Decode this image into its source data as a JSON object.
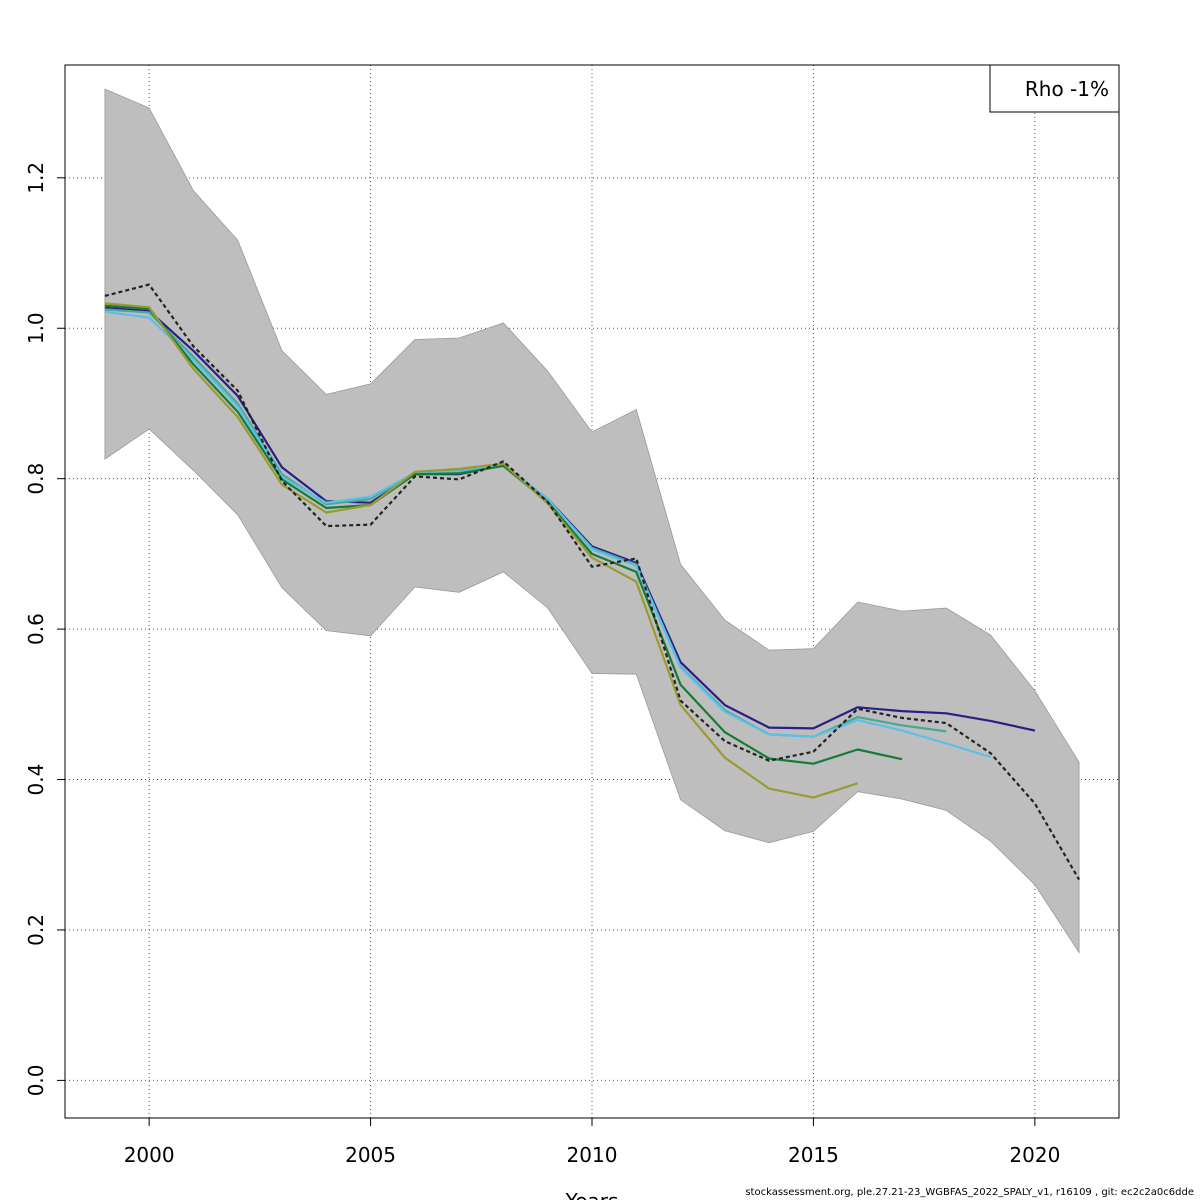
{
  "chart_data": {
    "type": "line",
    "title": "",
    "xlabel": "Years",
    "ylabel": "",
    "xlim": [
      1998.1,
      2021.9
    ],
    "ylim": [
      -0.05,
      1.35
    ],
    "xticks": [
      "2000",
      "2005",
      "2010",
      "2015",
      "2020"
    ],
    "yticks": [
      "0.0",
      "0.2",
      "0.4",
      "0.6",
      "0.8",
      "1.0",
      "1.2"
    ],
    "grid": true,
    "legend": {
      "position": "top-right",
      "text": "Rho -1%"
    },
    "band": {
      "x": [
        1999,
        2000,
        2001,
        2002,
        2003,
        2004,
        2005,
        2006,
        2007,
        2008,
        2009,
        2010,
        2011,
        2012,
        2013,
        2014,
        2015,
        2016,
        2017,
        2018,
        2019,
        2020,
        2021
      ],
      "upper": [
        1.318,
        1.293,
        1.183,
        1.117,
        0.97,
        0.912,
        0.926,
        0.985,
        0.987,
        1.007,
        0.943,
        0.862,
        0.892,
        0.686,
        0.612,
        0.572,
        0.574,
        0.636,
        0.624,
        0.628,
        0.592,
        0.518,
        0.423
      ],
      "lower": [
        0.826,
        0.866,
        0.811,
        0.752,
        0.655,
        0.598,
        0.591,
        0.656,
        0.649,
        0.676,
        0.628,
        0.541,
        0.54,
        0.373,
        0.332,
        0.316,
        0.331,
        0.384,
        0.374,
        0.359,
        0.318,
        0.26,
        0.17
      ],
      "color": "#bebebe"
    },
    "series": [
      {
        "color": "#2a1f86",
        "dashed": false,
        "x": [
          1999,
          2000,
          2001,
          2002,
          2003,
          2004,
          2005,
          2006,
          2007,
          2008,
          2009,
          2010,
          2011,
          2012,
          2013,
          2014,
          2015,
          2016,
          2017,
          2018,
          2019,
          2020
        ],
        "values": [
          1.027,
          1.023,
          0.97,
          0.91,
          0.815,
          0.77,
          0.768,
          0.806,
          0.806,
          0.818,
          0.773,
          0.71,
          0.688,
          0.556,
          0.499,
          0.469,
          0.468,
          0.496,
          0.491,
          0.488,
          0.478,
          0.465
        ]
      },
      {
        "color": "#4aa89a",
        "dashed": false,
        "x": [
          1999,
          2000,
          2001,
          2002,
          2003,
          2004,
          2005,
          2006,
          2007,
          2008,
          2009,
          2010,
          2011,
          2012,
          2013,
          2014,
          2015,
          2016,
          2017,
          2018
        ],
        "values": [
          1.025,
          1.021,
          0.962,
          0.9,
          0.806,
          0.766,
          0.773,
          0.808,
          0.81,
          0.817,
          0.772,
          0.708,
          0.686,
          0.55,
          0.492,
          0.46,
          0.457,
          0.483,
          0.472,
          0.464
        ]
      },
      {
        "color": "#5bc0e8",
        "dashed": false,
        "x": [
          1999,
          2000,
          2001,
          2002,
          2003,
          2004,
          2005,
          2006,
          2007,
          2008,
          2009,
          2010,
          2011,
          2012,
          2013,
          2014,
          2015,
          2016,
          2017,
          2018,
          2019
        ],
        "values": [
          1.022,
          1.014,
          0.958,
          0.896,
          0.802,
          0.768,
          0.776,
          0.808,
          0.809,
          0.818,
          0.773,
          0.706,
          0.684,
          0.549,
          0.49,
          0.46,
          0.457,
          0.479,
          0.465,
          0.448,
          0.43
        ]
      },
      {
        "color": "#167b34",
        "dashed": false,
        "x": [
          1999,
          2000,
          2001,
          2002,
          2003,
          2004,
          2005,
          2006,
          2007,
          2008,
          2009,
          2010,
          2011,
          2012,
          2013,
          2014,
          2015,
          2016,
          2017
        ],
        "values": [
          1.03,
          1.026,
          0.952,
          0.889,
          0.799,
          0.761,
          0.765,
          0.806,
          0.807,
          0.817,
          0.769,
          0.7,
          0.676,
          0.526,
          0.463,
          0.428,
          0.421,
          0.44,
          0.427
        ]
      },
      {
        "color": "#9a9a33",
        "dashed": false,
        "x": [
          1999,
          2000,
          2001,
          2002,
          2003,
          2004,
          2005,
          2006,
          2007,
          2008,
          2009,
          2010,
          2011,
          2012,
          2013,
          2014,
          2015,
          2016
        ],
        "values": [
          1.033,
          1.028,
          0.946,
          0.882,
          0.792,
          0.755,
          0.765,
          0.809,
          0.813,
          0.82,
          0.767,
          0.695,
          0.663,
          0.499,
          0.429,
          0.388,
          0.376,
          0.395
        ]
      },
      {
        "color": "#222222",
        "dashed": true,
        "x": [
          1999,
          2000,
          2001,
          2002,
          2003,
          2004,
          2005,
          2006,
          2007,
          2008,
          2009,
          2010,
          2011,
          2012,
          2013,
          2014,
          2015,
          2016,
          2017,
          2018,
          2019,
          2020,
          2021
        ],
        "values": [
          1.043,
          1.058,
          0.976,
          0.917,
          0.797,
          0.737,
          0.739,
          0.803,
          0.799,
          0.823,
          0.769,
          0.683,
          0.694,
          0.505,
          0.451,
          0.425,
          0.437,
          0.494,
          0.482,
          0.475,
          0.435,
          0.368,
          0.267
        ]
      }
    ]
  },
  "footer": "stockassessment.org, ple.27.21-23_WGBFAS_2022_SPALY_v1, r16109 , git: ec2c2a0c6dde"
}
